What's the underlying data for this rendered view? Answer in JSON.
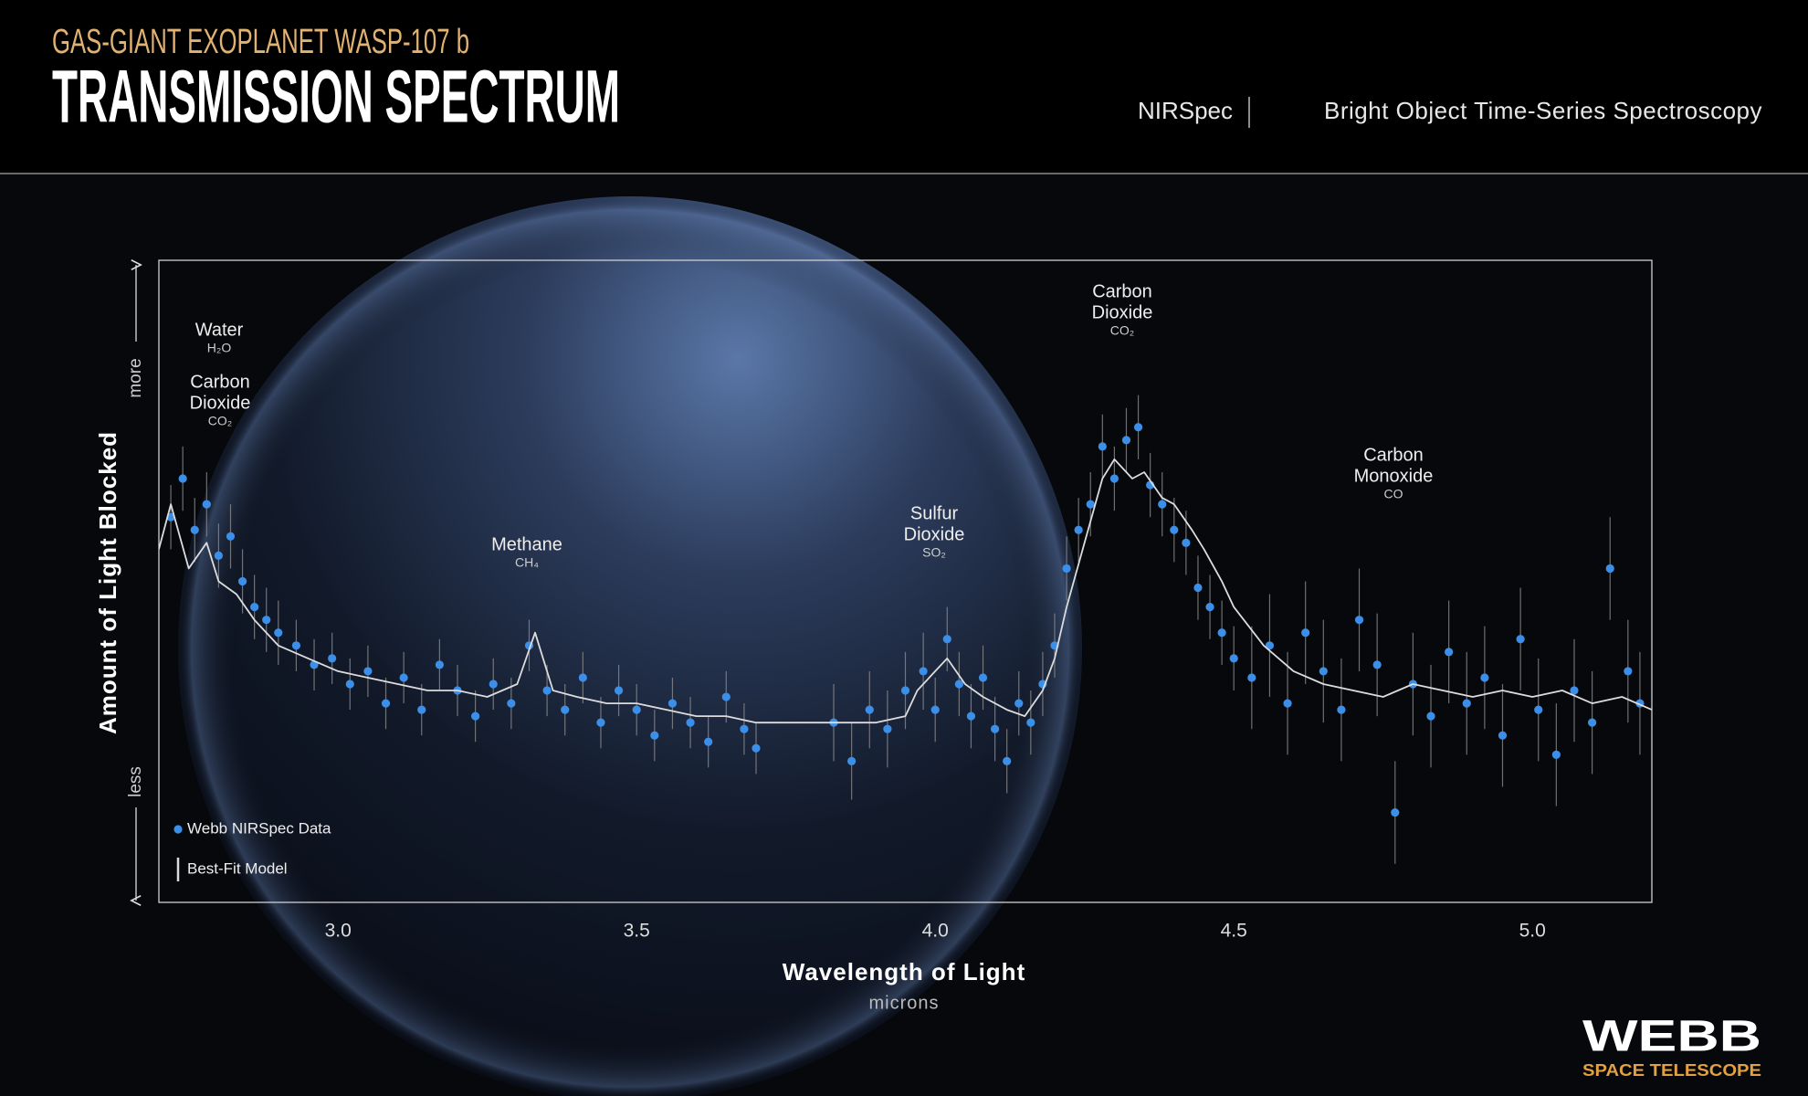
{
  "header": {
    "kicker": "GAS-GIANT EXOPLANET WASP-107 b",
    "title": "TRANSMISSION SPECTRUM",
    "instrument": "NIRSpec",
    "mode": "Bright Object Time-Series Spectroscopy"
  },
  "logo": {
    "name": "WEBB",
    "tagline": "SPACE TELESCOPE"
  },
  "chart_data": {
    "type": "scatter",
    "y_label": "Amount of Light Blocked",
    "y_more": "more",
    "y_less": "less",
    "x_label": "Wavelength of Light",
    "x_unit": "microns",
    "xlim": [
      2.7,
      5.2
    ],
    "ylim": [
      0,
      100
    ],
    "xticks": [
      {
        "value": 3,
        "label": "3.0"
      },
      {
        "value": 3.5,
        "label": "3.5"
      },
      {
        "value": 4,
        "label": "4.0"
      },
      {
        "value": 4.5,
        "label": "4.5"
      },
      {
        "value": 5,
        "label": "5.0"
      }
    ],
    "legend": "lower left",
    "series": [
      {
        "name": "Webb NIRSpec Data",
        "type": "scatter",
        "color": "#3b8fe8",
        "error_color": "#8a8a8a",
        "x": [
          2.72,
          2.74,
          2.76,
          2.78,
          2.8,
          2.82,
          2.84,
          2.86,
          2.88,
          2.9,
          2.93,
          2.96,
          2.99,
          3.02,
          3.05,
          3.08,
          3.11,
          3.14,
          3.17,
          3.2,
          3.23,
          3.26,
          3.29,
          3.32,
          3.35,
          3.38,
          3.41,
          3.44,
          3.47,
          3.5,
          3.53,
          3.56,
          3.59,
          3.62,
          3.65,
          3.68,
          3.7,
          3.83,
          3.86,
          3.89,
          3.92,
          3.95,
          3.98,
          4.0,
          4.02,
          4.04,
          4.06,
          4.08,
          4.1,
          4.12,
          4.14,
          4.16,
          4.18,
          4.2,
          4.22,
          4.24,
          4.26,
          4.28,
          4.3,
          4.32,
          4.34,
          4.36,
          4.38,
          4.4,
          4.42,
          4.44,
          4.46,
          4.48,
          4.5,
          4.53,
          4.56,
          4.59,
          4.62,
          4.65,
          4.68,
          4.71,
          4.74,
          4.77,
          4.8,
          4.83,
          4.86,
          4.89,
          4.92,
          4.95,
          4.98,
          5.01,
          5.04,
          5.07,
          5.1,
          5.13,
          5.16,
          5.18
        ],
        "values": [
          60,
          66,
          58,
          62,
          54,
          57,
          50,
          46,
          44,
          42,
          40,
          37,
          38,
          34,
          36,
          31,
          35,
          30,
          37,
          33,
          29,
          34,
          31,
          40,
          33,
          30,
          35,
          28,
          33,
          30,
          26,
          31,
          28,
          25,
          32,
          27,
          24,
          28,
          22,
          30,
          27,
          33,
          36,
          30,
          41,
          34,
          29,
          35,
          27,
          22,
          31,
          28,
          34,
          40,
          52,
          58,
          62,
          71,
          66,
          72,
          74,
          65,
          62,
          58,
          56,
          49,
          46,
          42,
          38,
          35,
          40,
          31,
          42,
          36,
          30,
          44,
          37,
          14,
          34,
          29,
          39,
          31,
          35,
          26,
          41,
          30,
          23,
          33,
          28,
          52,
          36,
          31
        ],
        "errors": [
          5,
          5,
          5,
          5,
          5,
          5,
          5,
          5,
          5,
          5,
          4,
          4,
          4,
          4,
          4,
          4,
          4,
          4,
          4,
          4,
          4,
          4,
          4,
          4,
          4,
          4,
          4,
          4,
          4,
          4,
          4,
          4,
          4,
          4,
          4,
          4,
          4,
          6,
          6,
          6,
          6,
          6,
          6,
          5,
          5,
          5,
          5,
          5,
          5,
          5,
          5,
          5,
          5,
          5,
          5,
          5,
          5,
          5,
          5,
          5,
          5,
          5,
          5,
          5,
          5,
          5,
          5,
          5,
          5,
          8,
          8,
          8,
          8,
          8,
          8,
          8,
          8,
          8,
          8,
          8,
          8,
          8,
          8,
          8,
          8,
          8,
          8,
          8,
          8,
          8,
          8,
          8
        ]
      },
      {
        "name": "Best-Fit Model",
        "type": "line",
        "color": "#dcdcdc",
        "x": [
          2.7,
          2.72,
          2.75,
          2.78,
          2.8,
          2.83,
          2.86,
          2.9,
          2.95,
          3.0,
          3.05,
          3.1,
          3.15,
          3.2,
          3.25,
          3.3,
          3.33,
          3.36,
          3.4,
          3.45,
          3.5,
          3.55,
          3.6,
          3.65,
          3.7,
          3.75,
          3.8,
          3.85,
          3.9,
          3.95,
          3.97,
          4.0,
          4.02,
          4.05,
          4.08,
          4.12,
          4.15,
          4.18,
          4.2,
          4.22,
          4.25,
          4.28,
          4.3,
          4.33,
          4.35,
          4.38,
          4.4,
          4.43,
          4.45,
          4.48,
          4.5,
          4.55,
          4.6,
          4.65,
          4.7,
          4.75,
          4.8,
          4.85,
          4.9,
          4.95,
          5.0,
          5.05,
          5.1,
          5.15,
          5.2
        ],
        "values": [
          55,
          62,
          52,
          56,
          50,
          48,
          44,
          40,
          38,
          36,
          35,
          34,
          33,
          33,
          32,
          34,
          42,
          33,
          32,
          31,
          31,
          30,
          29,
          29,
          28,
          28,
          28,
          28,
          28,
          29,
          33,
          36,
          38,
          34,
          32,
          30,
          29,
          33,
          38,
          46,
          56,
          66,
          69,
          66,
          67,
          63,
          62,
          58,
          55,
          50,
          46,
          40,
          36,
          34,
          33,
          32,
          34,
          33,
          32,
          33,
          32,
          33,
          31,
          32,
          30
        ]
      }
    ],
    "annotations": [
      {
        "lines": [
          "Water"
        ],
        "formula": "H₂O"
      },
      {
        "lines": [
          "Carbon",
          "Dioxide"
        ],
        "formula": "CO₂"
      },
      {
        "lines": [
          "Methane"
        ],
        "formula": "CH₄"
      },
      {
        "lines": [
          "Sulfur",
          "Dioxide"
        ],
        "formula": "SO₂"
      },
      {
        "lines": [
          "Carbon",
          "Dioxide"
        ],
        "formula": "CO₂"
      },
      {
        "lines": [
          "Carbon",
          "Monoxide"
        ],
        "formula": "CO"
      }
    ]
  }
}
